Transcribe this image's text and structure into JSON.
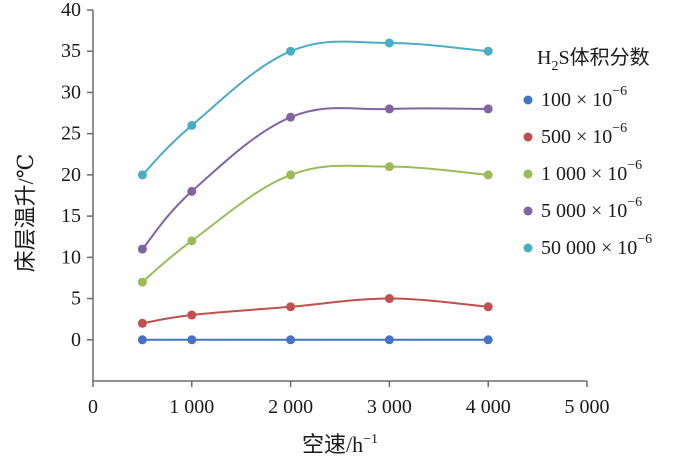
{
  "chart_data": {
    "type": "line",
    "xlabel": "空速/h",
    "xlabel_sup": "−1",
    "ylabel": "床层温升/℃",
    "xlim": [
      0,
      5000
    ],
    "ylim": [
      -5,
      40
    ],
    "x_ticks": [
      0,
      1000,
      2000,
      3000,
      4000,
      5000
    ],
    "x_tick_labels": [
      "0",
      "1 000",
      "2 000",
      "3 000",
      "4 000",
      "5 000"
    ],
    "y_ticks": [
      0,
      5,
      10,
      15,
      20,
      25,
      30,
      35,
      40
    ],
    "y_tick_labels": [
      "0",
      "5",
      "10",
      "15",
      "20",
      "25",
      "30",
      "35",
      "40"
    ],
    "grid": false,
    "legend_position": "right",
    "legend_title": {
      "prefix": "H",
      "sub": "2",
      "suffix": "S体积分数"
    },
    "x": [
      500,
      1000,
      2000,
      3000,
      4000
    ],
    "series": [
      {
        "name": "100 × 10",
        "sup": "−6",
        "color": "#4472c4",
        "values": [
          0,
          0,
          0,
          0,
          0
        ]
      },
      {
        "name": "500 × 10",
        "sup": "−6",
        "color": "#c0504d",
        "values": [
          2,
          3,
          4,
          5,
          4
        ]
      },
      {
        "name": "1 000 × 10",
        "sup": "−6",
        "color": "#9bbb59",
        "values": [
          7,
          12,
          20,
          21,
          20
        ]
      },
      {
        "name": "5 000 × 10",
        "sup": "−6",
        "color": "#8064a2",
        "values": [
          11,
          18,
          27,
          28,
          28
        ]
      },
      {
        "name": "50 000 × 10",
        "sup": "−6",
        "color": "#4bacc6",
        "values": [
          20,
          26,
          35,
          36,
          35
        ]
      }
    ]
  }
}
